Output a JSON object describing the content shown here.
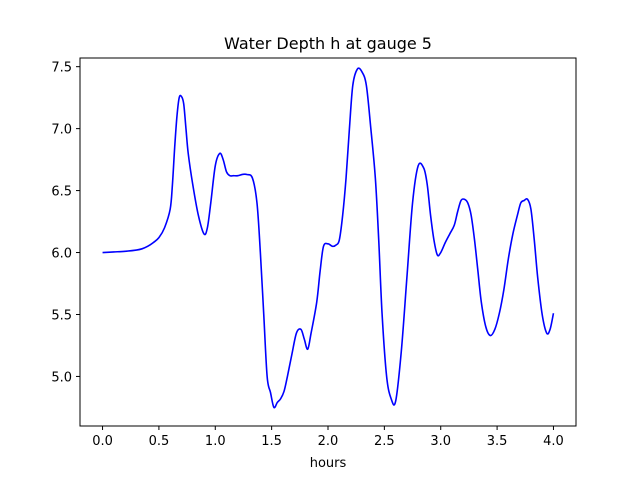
{
  "chart_data": {
    "type": "line",
    "title": "Water Depth h at gauge 5",
    "xlabel": "hours",
    "ylabel": "",
    "xlim": [
      -0.2,
      4.2
    ],
    "ylim": [
      4.6,
      7.57
    ],
    "grid": false,
    "x_ticks": [
      0.0,
      0.5,
      1.0,
      1.5,
      2.0,
      2.5,
      3.0,
      3.5,
      4.0
    ],
    "x_tick_labels": [
      "0.0",
      "0.5",
      "1.0",
      "1.5",
      "2.0",
      "2.5",
      "3.0",
      "3.5",
      "4.0"
    ],
    "y_ticks": [
      5.0,
      5.5,
      6.0,
      6.5,
      7.0,
      7.5
    ],
    "y_tick_labels": [
      "5.0",
      "5.5",
      "6.0",
      "6.5",
      "7.0",
      "7.5"
    ],
    "colors": {
      "line": "#0000ff",
      "frame": "#000000",
      "background": "#ffffff"
    },
    "series": [
      {
        "x": [
          0.0,
          0.1,
          0.2,
          0.3,
          0.35,
          0.4,
          0.45,
          0.5,
          0.55,
          0.6,
          0.62,
          0.64,
          0.66,
          0.68,
          0.7,
          0.72,
          0.74,
          0.76,
          0.8,
          0.85,
          0.9,
          0.93,
          0.96,
          1.0,
          1.04,
          1.07,
          1.1,
          1.13,
          1.16,
          1.2,
          1.24,
          1.28,
          1.33,
          1.37,
          1.4,
          1.43,
          1.46,
          1.49,
          1.52,
          1.55,
          1.58,
          1.61,
          1.64,
          1.68,
          1.72,
          1.76,
          1.79,
          1.82,
          1.85,
          1.9,
          1.93,
          1.96,
          2.0,
          2.04,
          2.07,
          2.1,
          2.13,
          2.16,
          2.19,
          2.22,
          2.26,
          2.3,
          2.34,
          2.38,
          2.42,
          2.45,
          2.48,
          2.52,
          2.56,
          2.6,
          2.65,
          2.7,
          2.75,
          2.8,
          2.85,
          2.88,
          2.91,
          2.94,
          2.97,
          3.0,
          3.04,
          3.08,
          3.12,
          3.15,
          3.18,
          3.21,
          3.24,
          3.27,
          3.3,
          3.33,
          3.36,
          3.4,
          3.44,
          3.48,
          3.52,
          3.56,
          3.6,
          3.64,
          3.68,
          3.71,
          3.74,
          3.77,
          3.8,
          3.83,
          3.86,
          3.9,
          3.94,
          3.97,
          4.0
        ],
        "y": [
          6.0,
          6.005,
          6.01,
          6.02,
          6.03,
          6.05,
          6.08,
          6.12,
          6.2,
          6.35,
          6.55,
          6.85,
          7.1,
          7.25,
          7.26,
          7.2,
          7.0,
          6.8,
          6.55,
          6.3,
          6.15,
          6.2,
          6.4,
          6.7,
          6.8,
          6.75,
          6.65,
          6.62,
          6.62,
          6.62,
          6.63,
          6.63,
          6.6,
          6.4,
          6.0,
          5.5,
          5.0,
          4.87,
          4.75,
          4.79,
          4.82,
          4.88,
          5.0,
          5.18,
          5.35,
          5.38,
          5.3,
          5.22,
          5.35,
          5.6,
          5.85,
          6.05,
          6.07,
          6.05,
          6.06,
          6.1,
          6.3,
          6.6,
          7.0,
          7.35,
          7.48,
          7.46,
          7.35,
          7.0,
          6.6,
          6.1,
          5.5,
          5.0,
          4.82,
          4.8,
          5.2,
          5.8,
          6.4,
          6.7,
          6.68,
          6.55,
          6.3,
          6.1,
          5.98,
          6.0,
          6.08,
          6.15,
          6.22,
          6.33,
          6.42,
          6.43,
          6.4,
          6.3,
          6.1,
          5.85,
          5.6,
          5.4,
          5.33,
          5.38,
          5.51,
          5.7,
          5.95,
          6.15,
          6.3,
          6.4,
          6.42,
          6.43,
          6.35,
          6.1,
          5.8,
          5.5,
          5.35,
          5.38,
          5.51
        ]
      }
    ]
  }
}
